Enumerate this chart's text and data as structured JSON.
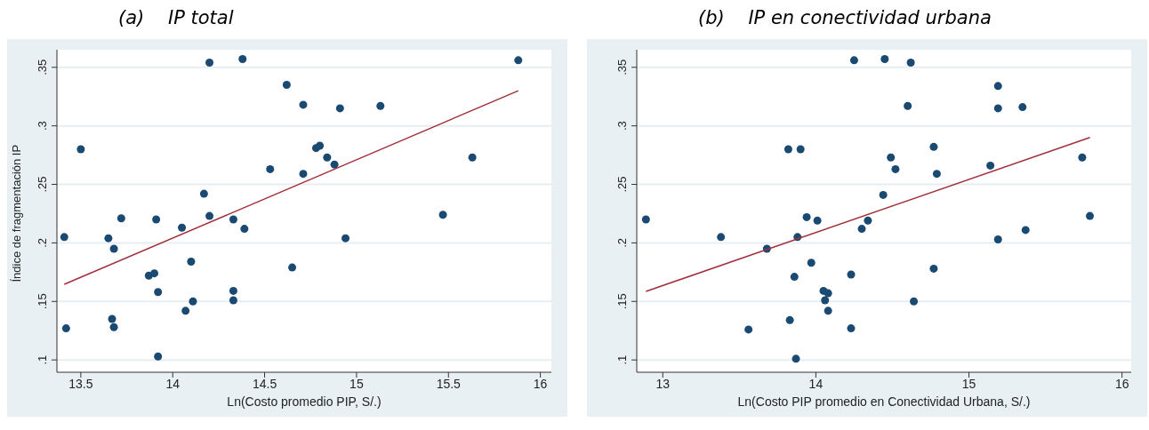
{
  "chart_data": [
    {
      "type": "scatter",
      "title": "(a)    IP total",
      "xlabel": "Ln(Costo promedio PIP, S/.)",
      "ylabel": "Índice de fragmentación IP",
      "xlim": [
        13.37,
        16.06
      ],
      "ylim": [
        0.0895,
        0.365
      ],
      "xticks": [
        13.5,
        14,
        14.5,
        15,
        15.5,
        16
      ],
      "yticks": [
        {
          "value": 0.1,
          "label": ".1"
        },
        {
          "value": 0.15,
          "label": ".15"
        },
        {
          "value": 0.2,
          "label": ".2"
        },
        {
          "value": 0.25,
          "label": ".25"
        },
        {
          "value": 0.3,
          "label": ".3"
        },
        {
          "value": 0.35,
          "label": ".35"
        }
      ],
      "grid": "y",
      "legend": false,
      "series": [
        {
          "marker": "circle",
          "color": "#1a4a72",
          "x": [
            13.41,
            13.42,
            13.5,
            13.65,
            13.68,
            13.72,
            13.67,
            13.68,
            13.87,
            13.9,
            13.91,
            13.92,
            13.92,
            14.05,
            14.07,
            14.1,
            14.11,
            14.17,
            14.2,
            14.2,
            14.38,
            14.33,
            14.33,
            14.33,
            14.39,
            14.53,
            14.62,
            14.65,
            14.71,
            14.71,
            14.78,
            14.8,
            14.84,
            14.88,
            14.91,
            14.94,
            15.13,
            15.47,
            15.63,
            15.88
          ],
          "values": [
            0.205,
            0.127,
            0.28,
            0.204,
            0.195,
            0.221,
            0.135,
            0.128,
            0.172,
            0.174,
            0.22,
            0.158,
            0.103,
            0.213,
            0.142,
            0.184,
            0.15,
            0.242,
            0.223,
            0.354,
            0.357,
            0.159,
            0.151,
            0.22,
            0.212,
            0.263,
            0.335,
            0.179,
            0.318,
            0.259,
            0.281,
            0.283,
            0.273,
            0.267,
            0.315,
            0.204,
            0.317,
            0.224,
            0.273,
            0.356
          ]
        },
        {
          "type": "line",
          "marker": "none",
          "color": "#a0303a",
          "x": [
            13.41,
            15.88
          ],
          "values": [
            0.1646,
            0.33
          ]
        }
      ]
    },
    {
      "type": "scatter",
      "title": "(b)    IP en conectividad urbana",
      "xlabel": "Ln(Costo PIP promedio en Conectividad Urbana, S/.)",
      "xlim": [
        12.83,
        16.06
      ],
      "ylim": [
        0.0895,
        0.365
      ],
      "xticks": [
        13,
        14,
        15,
        16
      ],
      "yticks": [
        {
          "value": 0.1,
          "label": ".1"
        },
        {
          "value": 0.15,
          "label": ".15"
        },
        {
          "value": 0.2,
          "label": ".2"
        },
        {
          "value": 0.25,
          "label": ".25"
        },
        {
          "value": 0.3,
          "label": ".3"
        },
        {
          "value": 0.35,
          "label": ".35"
        }
      ],
      "grid": "y",
      "legend": false,
      "series": [
        {
          "marker": "circle",
          "color": "#1a4a72",
          "x": [
            12.89,
            13.38,
            13.56,
            13.68,
            13.82,
            13.9,
            13.83,
            13.86,
            13.87,
            13.88,
            13.94,
            14.01,
            13.97,
            14.05,
            14.06,
            14.08,
            14.08,
            14.23,
            14.23,
            14.25,
            14.3,
            14.34,
            14.44,
            14.45,
            14.49,
            14.52,
            14.62,
            14.6,
            14.64,
            14.77,
            14.77,
            14.79,
            15.14,
            15.19,
            15.19,
            15.19,
            15.35,
            15.37,
            15.74,
            15.79
          ],
          "values": [
            0.22,
            0.205,
            0.126,
            0.195,
            0.28,
            0.28,
            0.134,
            0.171,
            0.101,
            0.205,
            0.222,
            0.219,
            0.183,
            0.159,
            0.151,
            0.142,
            0.157,
            0.173,
            0.127,
            0.356,
            0.212,
            0.219,
            0.241,
            0.357,
            0.273,
            0.263,
            0.354,
            0.317,
            0.15,
            0.282,
            0.178,
            0.259,
            0.266,
            0.334,
            0.315,
            0.203,
            0.316,
            0.211,
            0.273,
            0.223
          ]
        },
        {
          "type": "line",
          "marker": "none",
          "color": "#a0303a",
          "x": [
            12.89,
            15.79
          ],
          "values": [
            0.1586,
            0.29
          ]
        }
      ]
    }
  ]
}
